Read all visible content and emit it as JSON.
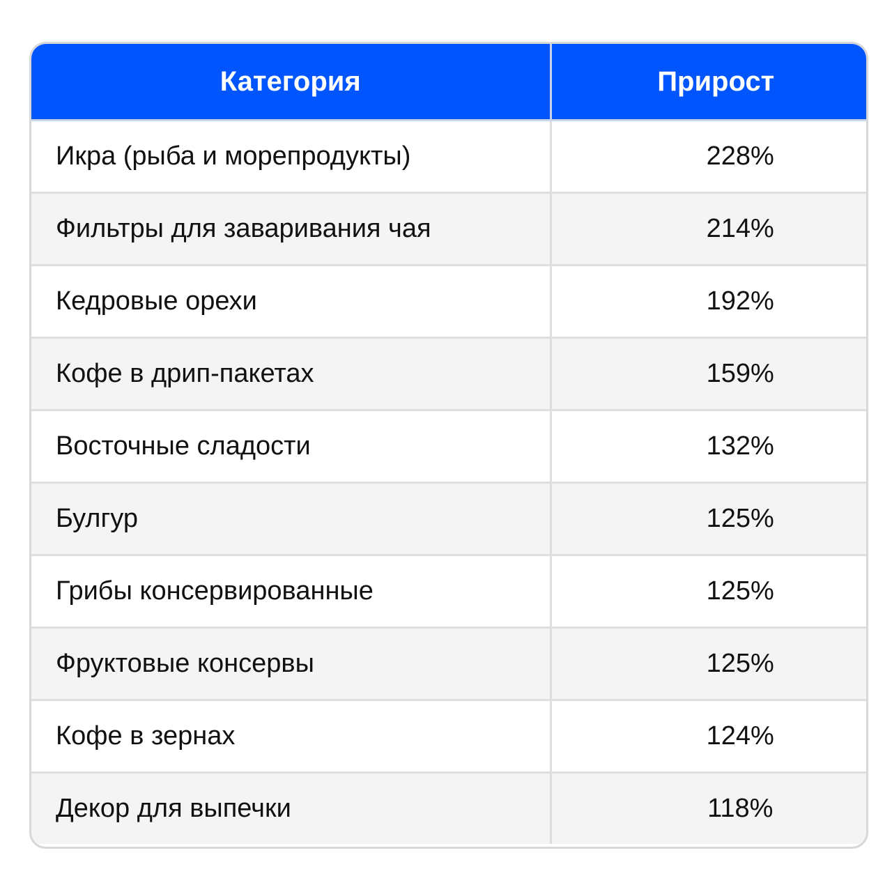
{
  "table": {
    "headers": {
      "category": "Категория",
      "growth": "Прирост"
    },
    "rows": [
      {
        "category": "Икра (рыба и морепродукты)",
        "growth": "228%"
      },
      {
        "category": "Фильтры для заваривания чая",
        "growth": "214%"
      },
      {
        "category": "Кедровые орехи",
        "growth": "192%"
      },
      {
        "category": "Кофе в дрип-пакетах",
        "growth": "159%"
      },
      {
        "category": "Восточные сладости",
        "growth": "132%"
      },
      {
        "category": "Булгур",
        "growth": "125%"
      },
      {
        "category": "Грибы консервированные",
        "growth": "125%"
      },
      {
        "category": "Фруктовые консервы",
        "growth": "125%"
      },
      {
        "category": "Кофе в зернах",
        "growth": "124%"
      },
      {
        "category": "Декор для выпечки",
        "growth": "118%"
      }
    ]
  },
  "colors": {
    "header_bg": "#0055ff",
    "header_text": "#ffffff",
    "row_alt_bg": "#f4f4f5",
    "border": "#dedee0"
  }
}
